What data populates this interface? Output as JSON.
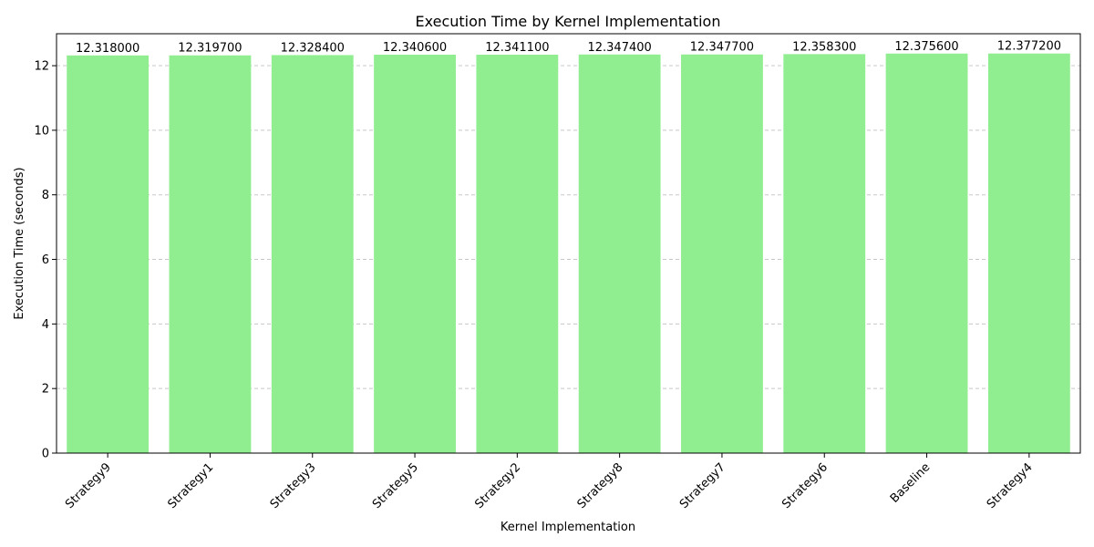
{
  "chart_data": {
    "type": "bar",
    "title": "Execution Time by Kernel Implementation",
    "xlabel": "Kernel Implementation",
    "ylabel": "Execution Time (seconds)",
    "categories": [
      "Strategy9",
      "Strategy1",
      "Strategy3",
      "Strategy5",
      "Strategy2",
      "Strategy8",
      "Strategy7",
      "Strategy6",
      "Baseline",
      "Strategy4"
    ],
    "values": [
      12.318,
      12.3197,
      12.3284,
      12.3406,
      12.3411,
      12.3474,
      12.3477,
      12.3583,
      12.3756,
      12.3772
    ],
    "value_labels": [
      "12.318000",
      "12.319700",
      "12.328400",
      "12.340600",
      "12.341100",
      "12.347400",
      "12.347700",
      "12.358300",
      "12.375600",
      "12.377200"
    ],
    "ylim": [
      0,
      12.99
    ],
    "yticks": [
      0,
      2,
      4,
      6,
      8,
      10,
      12
    ],
    "ytick_labels": [
      "0",
      "2",
      "4",
      "6",
      "8",
      "10",
      "12"
    ],
    "grid": "y-dashed",
    "bar_color": "#90ee90",
    "grid_color": "#c8c8c8"
  }
}
